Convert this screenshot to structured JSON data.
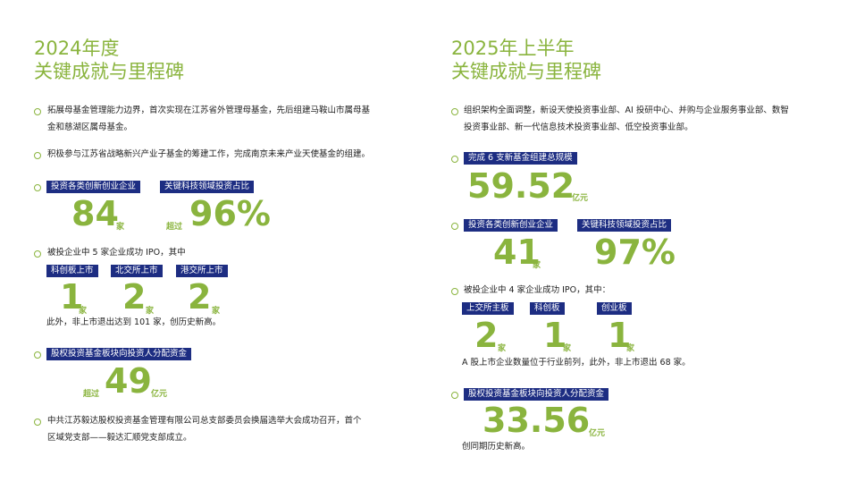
{
  "left": {
    "title_year": "2024年度",
    "title_main": "关键成就与里程碑",
    "item1": [
      "拓展母基金管理能力边界，首次实现在江苏省外管理母基金，先后组建马鞍山市属母基",
      "金和慈湖区属母基金。"
    ],
    "item2": "积极参与江苏省战略新兴产业子基金的筹建工作，完成南京未来产业天使基金的组建。",
    "tag_invest": "投资各类创新创业企业",
    "tag_tech": "关键科技领域投资占比",
    "stat_invest_value": "84",
    "stat_invest_unit": "家",
    "stat_tech_prefix": "超过",
    "stat_tech_value": "96%",
    "ipo_text": "被投企业中 5 家企业成功 IPO，其中",
    "ipo_tags": [
      "科创板上市",
      "北交所上市",
      "港交所上市"
    ],
    "ipo_values": [
      "1",
      "2",
      "2"
    ],
    "ipo_unit": "家",
    "ipo_note": "此外，非上市退出达到 101 家，创历史新高。",
    "tag_dist": "股权投资基金板块向投资人分配资金",
    "stat_dist_prefix": "超过",
    "stat_dist_value": "49",
    "stat_dist_unit": "亿元",
    "item_last": [
      "中共江苏毅达股权投资基金管理有限公司总支部委员会换届选举大会成功召开，首个",
      "区域党支部——毅达汇顺党支部成立。"
    ]
  },
  "right": {
    "title_year": "2025年上半年",
    "title_main": "关键成就与里程碑",
    "item1": [
      "组织架构全面调整，新设天使投资事业部、AI 投研中心、并购与企业服务事业部、数智",
      "投资事业部、新一代信息技术投资事业部、低空投资事业部。"
    ],
    "tag_fund": "完成 6 支新基金组建总规模",
    "stat_fund_value": "59.52",
    "stat_fund_unit": "亿元",
    "tag_invest": "投资各类创新创业企业",
    "tag_tech": "关键科技领域投资占比",
    "stat_invest_value": "41",
    "stat_invest_unit": "家",
    "stat_tech_value": "97%",
    "ipo_text": "被投企业中 4 家企业成功 IPO，其中：",
    "ipo_tags": [
      "上交所主板",
      "科创板",
      "创业板"
    ],
    "ipo_values": [
      "2",
      "1",
      "1"
    ],
    "ipo_unit": "家",
    "ipo_note": "A 股上市企业数量位于行业前列，此外，非上市退出 68 家。",
    "tag_dist": "股权投资基金板块向投资人分配资金",
    "stat_dist_value": "33.56",
    "stat_dist_unit": "亿元",
    "dist_note": "创同期历史新高。"
  },
  "colors": {
    "accent": "#8ab43e",
    "tag_bg": "#1d2d82"
  }
}
